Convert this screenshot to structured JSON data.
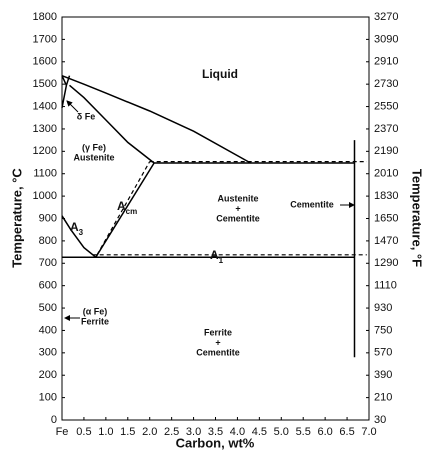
{
  "chart_data": {
    "type": "line",
    "xlabel": "Carbon, wt%",
    "ylabel": "Temperature, °C",
    "y2label": "Temperature, °F",
    "xlim": [
      0,
      7
    ],
    "ylim": [
      0,
      1800
    ],
    "y2lim": [
      30,
      3270
    ],
    "xticks": [
      {
        "value": 0,
        "label": "Fe"
      },
      0.5,
      {
        "value": 1,
        "label": "1.0"
      },
      1.5,
      {
        "value": 2,
        "label": "2.0"
      },
      2.5,
      {
        "value": 3,
        "label": "3.0"
      },
      3.5,
      {
        "value": 4,
        "label": "4.0"
      },
      4.5,
      {
        "value": 5,
        "label": "5.0"
      },
      5.5,
      {
        "value": 6,
        "label": "6.0"
      },
      6.5,
      {
        "value": 7,
        "label": "7.0"
      }
    ],
    "yticks": [
      0,
      100,
      200,
      300,
      400,
      500,
      600,
      700,
      800,
      900,
      1000,
      1100,
      1200,
      1300,
      1400,
      1500,
      1600,
      1700,
      1800
    ],
    "y2ticks": [
      30,
      210,
      390,
      570,
      750,
      930,
      1110,
      1290,
      1470,
      1650,
      1830,
      2010,
      2190,
      2370,
      2550,
      2730,
      2910,
      3090,
      3270
    ],
    "grid": false,
    "series": [
      {
        "color": "#000000",
        "dash": false,
        "x": [
          0,
          0.5,
          1,
          2,
          3,
          4.3
        ],
        "values": [
          1538,
          1500,
          1460,
          1380,
          1290,
          1148
        ]
      },
      {
        "color": "#000000",
        "dash": false,
        "x": [
          0.17,
          0.5,
          1,
          1.5,
          2.1
        ],
        "values": [
          1495,
          1440,
          1340,
          1240,
          1148
        ]
      },
      {
        "color": "#000000",
        "dash": false,
        "x": [
          0,
          0.1,
          0.17
        ],
        "values": [
          1394,
          1495,
          1538
        ]
      },
      {
        "color": "#000000",
        "dash": false,
        "x": [
          0,
          0.1
        ],
        "values": [
          1538,
          1495
        ]
      },
      {
        "color": "#000000",
        "dash": false,
        "x": [
          2.1,
          6.67
        ],
        "values": [
          1148,
          1148
        ]
      },
      {
        "color": "#000000",
        "dash": true,
        "x": [
          2,
          6.95
        ],
        "values": [
          1154,
          1154
        ]
      },
      {
        "color": "#000000",
        "dash": false,
        "x": [
          0.77,
          2.1
        ],
        "values": [
          727,
          1148
        ]
      },
      {
        "color": "#000000",
        "dash": true,
        "x": [
          0.8,
          2
        ],
        "values": [
          738,
          1154
        ]
      },
      {
        "color": "#000000",
        "dash": false,
        "x": [
          0,
          0.2,
          0.5,
          0.77
        ],
        "values": [
          912,
          850,
          770,
          727
        ]
      },
      {
        "color": "#000000",
        "dash": false,
        "x": [
          0,
          6.67
        ],
        "values": [
          727,
          727
        ]
      },
      {
        "color": "#000000",
        "dash": true,
        "x": [
          0.7,
          6.95
        ],
        "values": [
          738,
          738
        ]
      },
      {
        "color": "#000000",
        "dash": false,
        "x": [
          6.67,
          6.67
        ],
        "values": [
          1250,
          280
        ]
      }
    ],
    "annotations": [
      {
        "lines": [
          "Liquid"
        ]
      },
      {
        "lines": [
          "δ Fe"
        ]
      },
      {
        "lines": [
          "(γ Fe)",
          "Austenite"
        ]
      },
      {
        "lines": [
          "Austenite",
          "+",
          "Cementite"
        ]
      },
      {
        "lines": [
          "Cementite"
        ]
      },
      {
        "text": "A",
        "sub": "3"
      },
      {
        "text": "A",
        "sub": "cm"
      },
      {
        "text": "A",
        "sub": "1"
      },
      {
        "lines": [
          "(α Fe)",
          "Ferrite"
        ]
      },
      {
        "lines": [
          "Ferrite",
          "+",
          "Cementite"
        ]
      }
    ]
  }
}
